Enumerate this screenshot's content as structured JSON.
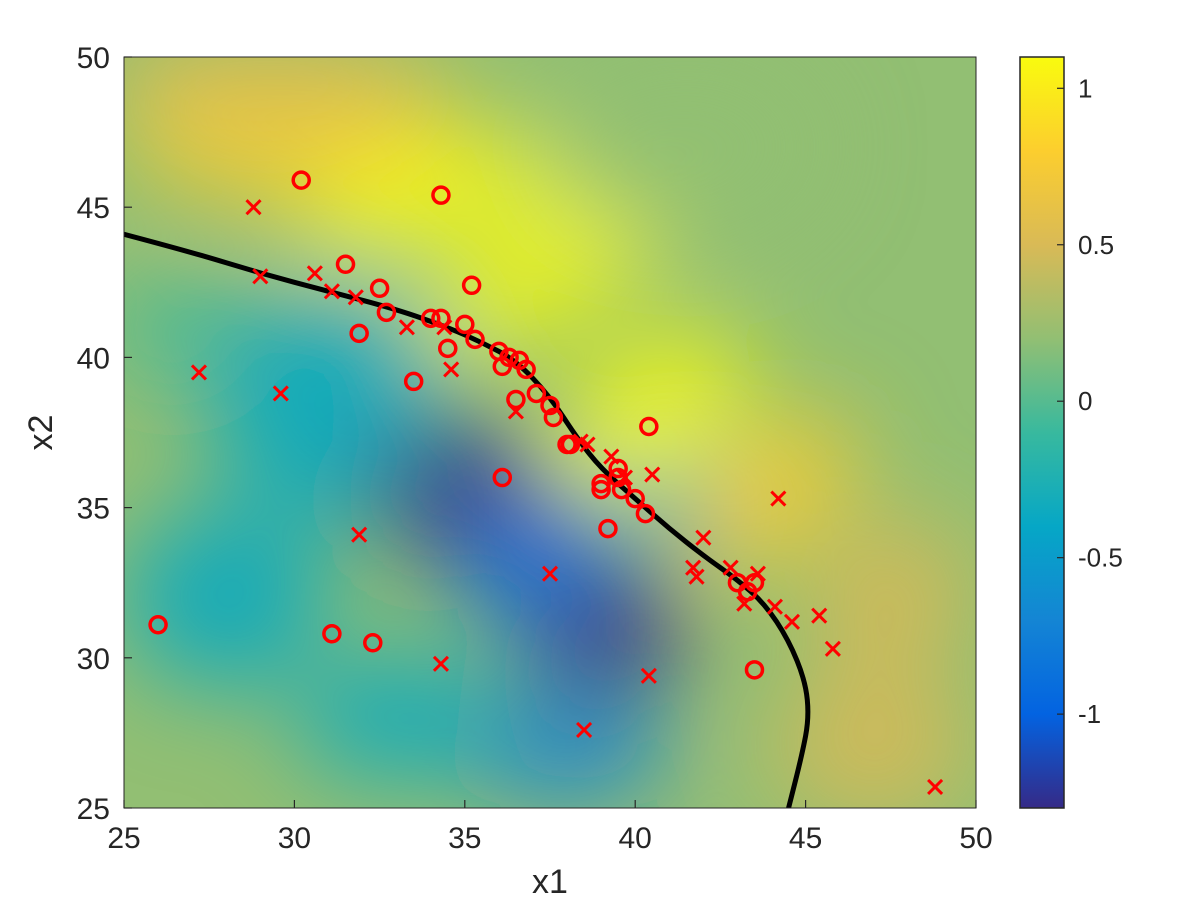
{
  "chart_data": {
    "type": "scatter",
    "title": "",
    "xlabel": "x1",
    "ylabel": "x2",
    "xlim": [
      25,
      50
    ],
    "ylim": [
      25,
      50
    ],
    "xticks": [
      "25",
      "30",
      "35",
      "40",
      "45",
      "50"
    ],
    "yticks": [
      "25",
      "30",
      "35",
      "40",
      "45",
      "50"
    ],
    "grid": false,
    "background": "filled contour heatmap of a decision function (parula colormap)",
    "colorbar": {
      "range": [
        -1.3,
        1.1
      ],
      "ticks": [
        "-1",
        "-0.5",
        "0",
        "0.5",
        "1"
      ],
      "colormap": [
        "#352a87",
        "#0363e1",
        "#1485d4",
        "#06a7c6",
        "#38b99e",
        "#92bf73",
        "#d9ba56",
        "#fcce2e",
        "#f9fb0e"
      ]
    },
    "decision_boundary": {
      "color": "#000000",
      "points": [
        [
          25.0,
          44.1
        ],
        [
          27.0,
          43.5
        ],
        [
          29.0,
          42.8
        ],
        [
          31.0,
          42.2
        ],
        [
          33.0,
          41.6
        ],
        [
          34.5,
          41.0
        ],
        [
          35.5,
          40.5
        ],
        [
          36.5,
          39.9
        ],
        [
          37.5,
          38.7
        ],
        [
          38.3,
          37.3
        ],
        [
          39.0,
          36.3
        ],
        [
          40.0,
          35.3
        ],
        [
          41.0,
          34.3
        ],
        [
          42.0,
          33.4
        ],
        [
          43.0,
          32.6
        ],
        [
          43.8,
          31.8
        ],
        [
          44.5,
          30.6
        ],
        [
          45.0,
          29.2
        ],
        [
          45.1,
          28.0
        ],
        [
          44.9,
          26.8
        ],
        [
          44.5,
          25.0
        ]
      ]
    },
    "series": [
      {
        "marker": "o",
        "color": "#ff0000",
        "points": [
          [
            30.2,
            45.9
          ],
          [
            34.3,
            45.4
          ],
          [
            31.5,
            43.1
          ],
          [
            35.2,
            42.4
          ],
          [
            32.5,
            42.3
          ],
          [
            32.7,
            41.5
          ],
          [
            31.9,
            40.8
          ],
          [
            34.0,
            41.3
          ],
          [
            34.3,
            41.3
          ],
          [
            35.0,
            41.1
          ],
          [
            35.3,
            40.6
          ],
          [
            34.5,
            40.3
          ],
          [
            36.0,
            40.2
          ],
          [
            36.3,
            40.0
          ],
          [
            36.6,
            39.9
          ],
          [
            36.1,
            39.7
          ],
          [
            36.8,
            39.6
          ],
          [
            33.5,
            39.2
          ],
          [
            37.1,
            38.8
          ],
          [
            36.5,
            38.6
          ],
          [
            37.5,
            38.4
          ],
          [
            37.6,
            38.0
          ],
          [
            40.4,
            37.7
          ],
          [
            38.0,
            37.1
          ],
          [
            38.1,
            37.1
          ],
          [
            39.5,
            36.3
          ],
          [
            39.5,
            36.0
          ],
          [
            36.1,
            36.0
          ],
          [
            39.0,
            35.8
          ],
          [
            39.0,
            35.6
          ],
          [
            39.6,
            35.6
          ],
          [
            40.0,
            35.3
          ],
          [
            40.3,
            34.8
          ],
          [
            39.2,
            34.3
          ],
          [
            43.0,
            32.5
          ],
          [
            43.5,
            32.5
          ],
          [
            43.3,
            32.2
          ],
          [
            26.0,
            31.1
          ],
          [
            31.1,
            30.8
          ],
          [
            32.3,
            30.5
          ],
          [
            43.5,
            29.6
          ]
        ]
      },
      {
        "marker": "x",
        "color": "#ff0000",
        "points": [
          [
            28.8,
            45.0
          ],
          [
            29.0,
            42.7
          ],
          [
            30.6,
            42.8
          ],
          [
            31.1,
            42.2
          ],
          [
            31.8,
            42.0
          ],
          [
            33.3,
            41.0
          ],
          [
            34.4,
            41.0
          ],
          [
            27.2,
            39.5
          ],
          [
            34.6,
            39.6
          ],
          [
            29.6,
            38.8
          ],
          [
            36.5,
            38.2
          ],
          [
            38.4,
            37.2
          ],
          [
            38.6,
            37.1
          ],
          [
            39.3,
            36.7
          ],
          [
            39.7,
            36.0
          ],
          [
            40.5,
            36.1
          ],
          [
            44.2,
            35.3
          ],
          [
            31.9,
            34.1
          ],
          [
            42.0,
            34.0
          ],
          [
            42.8,
            33.0
          ],
          [
            41.7,
            33.0
          ],
          [
            41.8,
            32.7
          ],
          [
            37.5,
            32.8
          ],
          [
            43.6,
            32.8
          ],
          [
            43.2,
            31.8
          ],
          [
            44.1,
            31.7
          ],
          [
            44.6,
            31.2
          ],
          [
            45.4,
            31.4
          ],
          [
            45.8,
            30.3
          ],
          [
            34.3,
            29.8
          ],
          [
            40.4,
            29.4
          ],
          [
            38.5,
            27.6
          ],
          [
            48.8,
            25.7
          ]
        ]
      }
    ]
  }
}
